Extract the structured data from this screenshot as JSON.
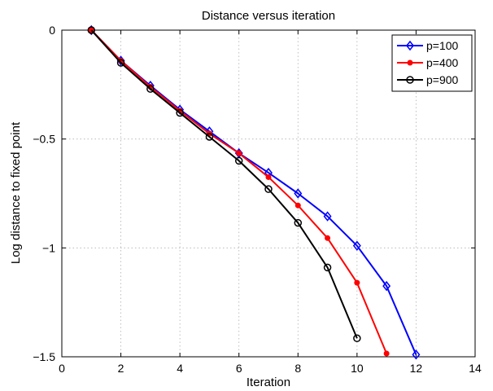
{
  "chart_data": {
    "type": "line",
    "title": "Distance versus iteration",
    "xlabel": "Iteration",
    "ylabel": "Log distance to fixed point",
    "xlim": [
      0,
      14
    ],
    "ylim": [
      -1.5,
      0
    ],
    "xticks": [
      0,
      2,
      4,
      6,
      8,
      10,
      12,
      14
    ],
    "xtick_labels": [
      "0",
      "2",
      "4",
      "6",
      "8",
      "10",
      "12",
      "14"
    ],
    "yticks": [
      0,
      -0.5,
      -1,
      -1.5
    ],
    "ytick_labels": [
      "0",
      "−0.5",
      "−1",
      "−1.5"
    ],
    "grid": true,
    "legend_position": "top-right",
    "series": [
      {
        "name": "p=100",
        "color": "#0000ff",
        "marker": "diamond",
        "x": [
          1,
          2,
          3,
          4,
          5,
          6,
          7,
          8,
          9,
          10,
          11,
          12
        ],
        "y": [
          0,
          -0.14,
          -0.255,
          -0.365,
          -0.465,
          -0.565,
          -0.655,
          -0.75,
          -0.855,
          -0.99,
          -1.175,
          -1.49
        ]
      },
      {
        "name": "p=400",
        "color": "#ff0000",
        "marker": "dot",
        "x": [
          1,
          2,
          3,
          4,
          5,
          6,
          7,
          8,
          9,
          10,
          11
        ],
        "y": [
          0,
          -0.14,
          -0.26,
          -0.37,
          -0.475,
          -0.565,
          -0.675,
          -0.805,
          -0.955,
          -1.16,
          -1.485
        ]
      },
      {
        "name": "p=900",
        "color": "#000000",
        "marker": "circle",
        "x": [
          1,
          2,
          3,
          4,
          5,
          6,
          7,
          8,
          9,
          10
        ],
        "y": [
          0,
          -0.15,
          -0.27,
          -0.38,
          -0.49,
          -0.6,
          -0.73,
          -0.885,
          -1.09,
          -1.415
        ]
      }
    ]
  }
}
